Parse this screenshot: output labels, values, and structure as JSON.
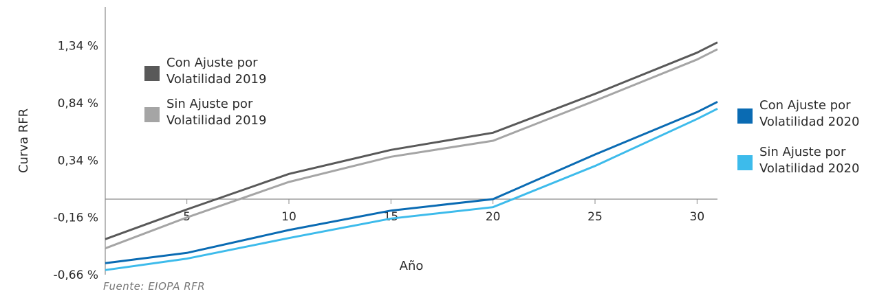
{
  "chart_data": {
    "type": "line",
    "xlabel": "Año",
    "ylabel": "Curva RFR",
    "x": [
      1,
      5,
      10,
      15,
      20,
      25,
      30,
      31
    ],
    "x_ticks": [
      5,
      10,
      15,
      20,
      25,
      30
    ],
    "x_tick_labels": [
      "5",
      "10",
      "15",
      "20",
      "25",
      "30"
    ],
    "xlim": [
      1,
      31
    ],
    "y_ticks": [
      1.34,
      0.84,
      0.34,
      -0.16,
      -0.66
    ],
    "y_tick_labels": [
      "1,34 %",
      "0,84 %",
      "0,34 %",
      "-0,16 %",
      "-0,66 %"
    ],
    "ylim": [
      -0.66,
      1.68
    ],
    "grid": false,
    "series": [
      {
        "name": "Con Ajuste por\nVolatilidad 2019",
        "color": "#595959",
        "values": [
          -0.35,
          -0.09,
          0.22,
          0.43,
          0.58,
          0.92,
          1.28,
          1.37
        ]
      },
      {
        "name": "Sin Ajuste por\nVolatilidad 2019",
        "color": "#a5a5a5",
        "values": [
          -0.43,
          -0.16,
          0.15,
          0.37,
          0.51,
          0.86,
          1.22,
          1.31
        ]
      },
      {
        "name": "Con Ajuste por\nVolatilidad 2020",
        "color": "#0a6bb3",
        "values": [
          -0.56,
          -0.47,
          -0.27,
          -0.1,
          0.0,
          0.39,
          0.76,
          0.85
        ]
      },
      {
        "name": "Sin Ajuste por\nVolatilidad 2020",
        "color": "#3dbbeb",
        "values": [
          -0.62,
          -0.52,
          -0.34,
          -0.17,
          -0.07,
          0.29,
          0.7,
          0.79
        ]
      }
    ]
  },
  "source": "Fuente: EIOPA RFR"
}
